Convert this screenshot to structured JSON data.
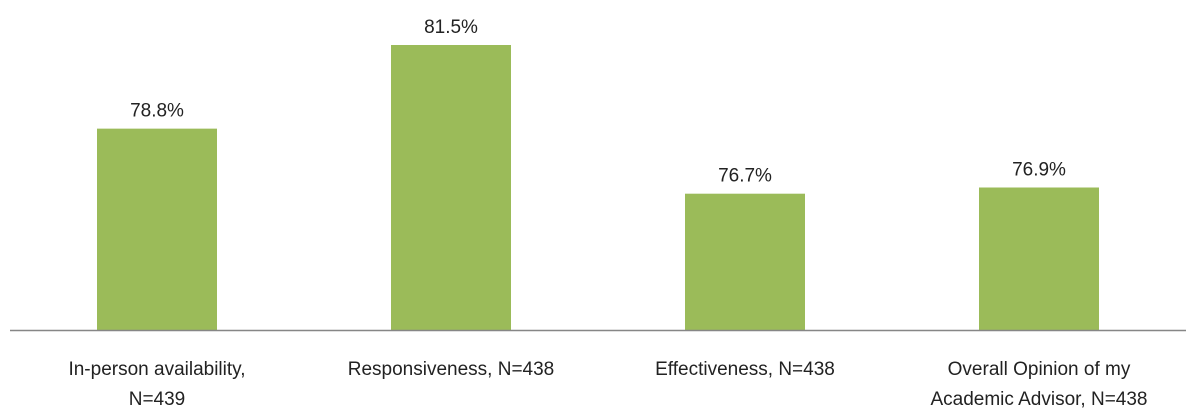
{
  "chart_data": {
    "type": "bar",
    "categories": [
      [
        "In-person availability,",
        "N=439"
      ],
      [
        "Responsiveness, N=438"
      ],
      [
        "Effectiveness, N=438"
      ],
      [
        "Overall Opinion of my",
        "Academic Advisor, N=438"
      ]
    ],
    "values": [
      78.8,
      81.5,
      76.7,
      76.9
    ],
    "value_labels": [
      "78.8%",
      "81.5%",
      "76.7%",
      "76.9%"
    ],
    "title": "",
    "xlabel": "",
    "ylabel": "",
    "ylim": [
      72.3,
      81.5
    ],
    "grid": false,
    "bar_color": "#9BBB59",
    "axis_color": "#868686"
  }
}
